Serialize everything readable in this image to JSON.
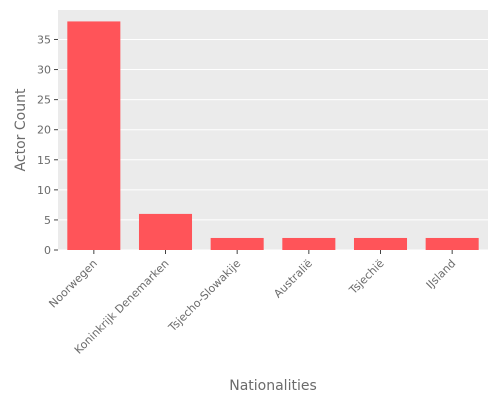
{
  "chart_data": {
    "type": "bar",
    "categories": [
      "Noorwegen",
      "Koninkrijk Denemarken",
      "Tsjecho-Slowakije",
      "Australië",
      "Tsjechië",
      "IJsland"
    ],
    "values": [
      38,
      6,
      2,
      2,
      2,
      2
    ],
    "xlabel": "Nationalities",
    "ylabel": "Actor Count",
    "ylim": [
      0,
      39.9
    ],
    "yticks": [
      0,
      5,
      10,
      15,
      20,
      25,
      30,
      35
    ],
    "grid": true,
    "colors": {
      "bar": "#ff5459",
      "panel": "#ebebeb",
      "grid": "#ffffff",
      "text": "#6b6b6b"
    }
  }
}
